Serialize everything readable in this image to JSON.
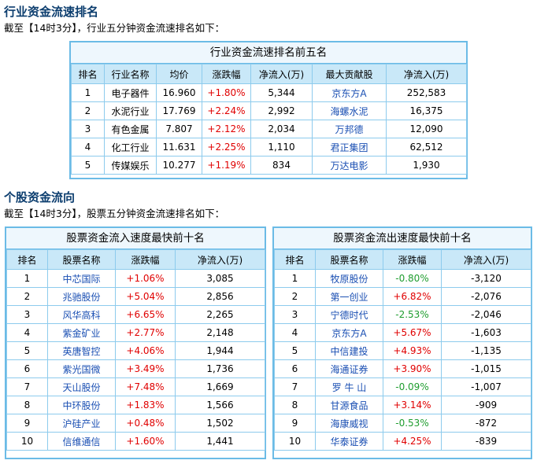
{
  "industry": {
    "title": "行业资金流速排名",
    "desc": "截至【14时3分】，行业五分钟资金流速排名如下：",
    "table_title": "行业资金流速排名前五名",
    "headers": [
      "排名",
      "行业名称",
      "均价",
      "涨跌幅",
      "净流入(万)",
      "最大贡献股",
      "净流入(万)"
    ],
    "rows": [
      {
        "rank": "1",
        "name": "电子器件",
        "price": "16.960",
        "change": "+1.80%",
        "inflow": "5,344",
        "stock": "京东方A",
        "stock_inflow": "252,583"
      },
      {
        "rank": "2",
        "name": "水泥行业",
        "price": "17.769",
        "change": "+2.24%",
        "inflow": "2,992",
        "stock": "海螺水泥",
        "stock_inflow": "16,375"
      },
      {
        "rank": "3",
        "name": "有色金属",
        "price": "7.807",
        "change": "+2.12%",
        "inflow": "2,034",
        "stock": "万邦德",
        "stock_inflow": "12,090"
      },
      {
        "rank": "4",
        "name": "化工行业",
        "price": "11.631",
        "change": "+2.25%",
        "inflow": "1,110",
        "stock": "君正集团",
        "stock_inflow": "62,512"
      },
      {
        "rank": "5",
        "name": "传媒娱乐",
        "price": "10.277",
        "change": "+1.19%",
        "inflow": "834",
        "stock": "万达电影",
        "stock_inflow": "1,930"
      }
    ]
  },
  "stocks": {
    "title": "个股资金流向",
    "desc": "截至【14时3分】，股票五分钟资金流速排名如下：",
    "inflow_table": {
      "title": "股票资金流入速度最快前十名",
      "headers": [
        "排名",
        "股票名称",
        "涨跌幅",
        "净流入(万)"
      ],
      "rows": [
        {
          "rank": "1",
          "name": "中芯国际",
          "change": "+1.06%",
          "dir": "up",
          "inflow": "3,085"
        },
        {
          "rank": "2",
          "name": "兆驰股份",
          "change": "+5.04%",
          "dir": "up",
          "inflow": "2,856"
        },
        {
          "rank": "3",
          "name": "风华高科",
          "change": "+6.65%",
          "dir": "up",
          "inflow": "2,265"
        },
        {
          "rank": "4",
          "name": "紫金矿业",
          "change": "+2.77%",
          "dir": "up",
          "inflow": "2,148"
        },
        {
          "rank": "5",
          "name": "英唐智控",
          "change": "+4.06%",
          "dir": "up",
          "inflow": "1,944"
        },
        {
          "rank": "6",
          "name": "紫光国微",
          "change": "+3.49%",
          "dir": "up",
          "inflow": "1,736"
        },
        {
          "rank": "7",
          "name": "天山股份",
          "change": "+7.48%",
          "dir": "up",
          "inflow": "1,669"
        },
        {
          "rank": "8",
          "name": "中环股份",
          "change": "+1.83%",
          "dir": "up",
          "inflow": "1,566"
        },
        {
          "rank": "9",
          "name": "沪硅产业",
          "change": "+0.48%",
          "dir": "up",
          "inflow": "1,502"
        },
        {
          "rank": "10",
          "name": "信维通信",
          "change": "+1.60%",
          "dir": "up",
          "inflow": "1,441"
        }
      ]
    },
    "outflow_table": {
      "title": "股票资金流出速度最快前十名",
      "headers": [
        "排名",
        "股票名称",
        "涨跌幅",
        "净流入(万)"
      ],
      "rows": [
        {
          "rank": "1",
          "name": "牧原股份",
          "change": "-0.80%",
          "dir": "down",
          "inflow": "-3,120"
        },
        {
          "rank": "2",
          "name": "第一创业",
          "change": "+6.82%",
          "dir": "up",
          "inflow": "-2,076"
        },
        {
          "rank": "3",
          "name": "宁德时代",
          "change": "-2.53%",
          "dir": "down",
          "inflow": "-2,046"
        },
        {
          "rank": "4",
          "name": "京东方A",
          "change": "+5.67%",
          "dir": "up",
          "inflow": "-1,603"
        },
        {
          "rank": "5",
          "name": "中信建投",
          "change": "+4.93%",
          "dir": "up",
          "inflow": "-1,135"
        },
        {
          "rank": "6",
          "name": "海通证券",
          "change": "+3.90%",
          "dir": "up",
          "inflow": "-1,015"
        },
        {
          "rank": "7",
          "name": "罗 牛 山",
          "change": "-0.09%",
          "dir": "down",
          "inflow": "-1,007"
        },
        {
          "rank": "8",
          "name": "甘源食品",
          "change": "+3.14%",
          "dir": "up",
          "inflow": "-909"
        },
        {
          "rank": "9",
          "name": "海康威视",
          "change": "-0.53%",
          "dir": "down",
          "inflow": "-872"
        },
        {
          "rank": "10",
          "name": "华泰证券",
          "change": "+4.25%",
          "dir": "up",
          "inflow": "-839"
        }
      ]
    }
  },
  "colors": {
    "up": "#e00000",
    "down": "#1f9d2f",
    "link": "#1a4fb3",
    "border": "#6bbbe6",
    "header_bg": "#c9e8f8"
  }
}
